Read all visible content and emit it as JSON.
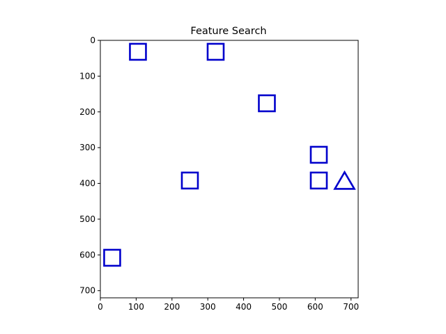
{
  "chart_data": {
    "type": "scatter",
    "title": "Feature Search",
    "xlabel": "",
    "ylabel": "",
    "xlim": [
      0,
      720
    ],
    "ylim": [
      720,
      0
    ],
    "y_inverted": true,
    "grid": false,
    "legend": "none",
    "x_ticks": [
      0,
      100,
      200,
      300,
      400,
      500,
      600,
      700
    ],
    "y_ticks": [
      0,
      100,
      200,
      300,
      400,
      500,
      600,
      700
    ],
    "marker_color": "#0000cc",
    "points": [
      {
        "shape": "square",
        "x": 105,
        "y": 32
      },
      {
        "shape": "square",
        "x": 322,
        "y": 32
      },
      {
        "shape": "square",
        "x": 465,
        "y": 176
      },
      {
        "shape": "square",
        "x": 610,
        "y": 320
      },
      {
        "shape": "square",
        "x": 610,
        "y": 392
      },
      {
        "shape": "square",
        "x": 250,
        "y": 392
      },
      {
        "shape": "square",
        "x": 33,
        "y": 608
      },
      {
        "shape": "triangle",
        "x": 682,
        "y": 392
      }
    ]
  }
}
